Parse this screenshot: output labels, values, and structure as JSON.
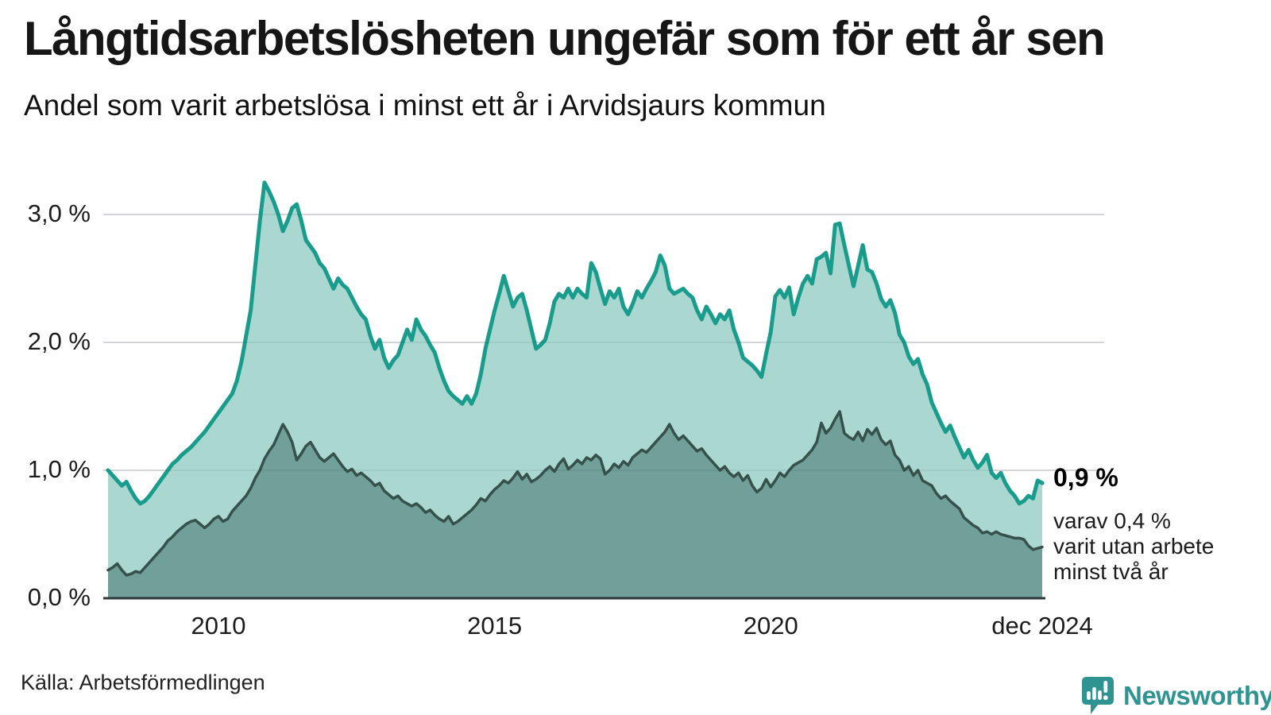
{
  "header": {
    "title": "Långtidsarbetslösheten ungefär som för ett år sen",
    "subtitle": "Andel som varit arbetslösa i minst ett år i Arvidsjaurs kommun"
  },
  "chart_data": {
    "type": "area",
    "unit": "%",
    "frequency": "monthly",
    "x_range": [
      "jan 2008",
      "dec 2024"
    ],
    "ylim": [
      0,
      3.45
    ],
    "grid": true,
    "legend": "none",
    "y_ticks": [
      {
        "value": 0,
        "label": "0,0 %"
      },
      {
        "value": 1,
        "label": "1,0 %"
      },
      {
        "value": 2,
        "label": "2,0 %"
      },
      {
        "value": 3,
        "label": "3,0 %"
      }
    ],
    "x_ticks": [
      {
        "label": "2010",
        "month_index": 24
      },
      {
        "label": "2015",
        "month_index": 84
      },
      {
        "label": "2020",
        "month_index": 144
      },
      {
        "label": "dec 2024",
        "month_index": 203
      }
    ],
    "series": [
      {
        "name": "arbetslösa minst ett år",
        "color": "#1a9c8d",
        "fill": "#aad8d0",
        "line_width": 5,
        "values": [
          1.0,
          0.96,
          0.92,
          0.88,
          0.91,
          0.84,
          0.78,
          0.74,
          0.76,
          0.8,
          0.85,
          0.9,
          0.95,
          1.0,
          1.05,
          1.08,
          1.12,
          1.15,
          1.18,
          1.22,
          1.26,
          1.3,
          1.35,
          1.4,
          1.45,
          1.5,
          1.55,
          1.6,
          1.7,
          1.85,
          2.05,
          2.25,
          2.6,
          2.95,
          3.25,
          3.18,
          3.1,
          3.0,
          2.87,
          2.95,
          3.05,
          3.08,
          2.95,
          2.8,
          2.75,
          2.7,
          2.62,
          2.58,
          2.5,
          2.42,
          2.5,
          2.45,
          2.42,
          2.35,
          2.28,
          2.22,
          2.18,
          2.05,
          1.95,
          2.02,
          1.88,
          1.8,
          1.86,
          1.9,
          2.0,
          2.1,
          2.02,
          2.18,
          2.1,
          2.05,
          1.98,
          1.92,
          1.8,
          1.7,
          1.62,
          1.58,
          1.55,
          1.52,
          1.58,
          1.52,
          1.6,
          1.75,
          1.95,
          2.1,
          2.25,
          2.38,
          2.52,
          2.4,
          2.28,
          2.35,
          2.38,
          2.25,
          2.1,
          1.95,
          1.98,
          2.02,
          2.15,
          2.32,
          2.38,
          2.35,
          2.42,
          2.35,
          2.42,
          2.38,
          2.35,
          2.62,
          2.55,
          2.42,
          2.3,
          2.4,
          2.35,
          2.42,
          2.28,
          2.22,
          2.3,
          2.4,
          2.35,
          2.42,
          2.48,
          2.55,
          2.68,
          2.6,
          2.42,
          2.38,
          2.4,
          2.42,
          2.38,
          2.35,
          2.25,
          2.18,
          2.28,
          2.22,
          2.15,
          2.22,
          2.18,
          2.25,
          2.1,
          2.0,
          1.88,
          1.85,
          1.82,
          1.78,
          1.73,
          1.91,
          2.08,
          2.36,
          2.41,
          2.35,
          2.43,
          2.22,
          2.35,
          2.46,
          2.52,
          2.46,
          2.65,
          2.67,
          2.7,
          2.54,
          2.92,
          2.93,
          2.76,
          2.6,
          2.44,
          2.6,
          2.76,
          2.57,
          2.55,
          2.46,
          2.34,
          2.28,
          2.33,
          2.23,
          2.06,
          2.0,
          1.89,
          1.83,
          1.87,
          1.75,
          1.67,
          1.53,
          1.45,
          1.37,
          1.3,
          1.35,
          1.26,
          1.18,
          1.1,
          1.16,
          1.08,
          1.02,
          1.06,
          1.12,
          0.98,
          0.94,
          0.98,
          0.9,
          0.84,
          0.8,
          0.74,
          0.76,
          0.8,
          0.78,
          0.92,
          0.9
        ]
      },
      {
        "name": "varit utan arbete minst två år",
        "color": "#36504b",
        "fill": "#70a099",
        "line_width": 3.5,
        "values": [
          0.22,
          0.24,
          0.27,
          0.22,
          0.18,
          0.19,
          0.21,
          0.2,
          0.24,
          0.28,
          0.32,
          0.36,
          0.4,
          0.45,
          0.48,
          0.52,
          0.55,
          0.58,
          0.6,
          0.61,
          0.58,
          0.55,
          0.58,
          0.62,
          0.64,
          0.6,
          0.62,
          0.68,
          0.72,
          0.76,
          0.8,
          0.86,
          0.94,
          1.0,
          1.09,
          1.15,
          1.2,
          1.28,
          1.36,
          1.3,
          1.22,
          1.08,
          1.13,
          1.19,
          1.22,
          1.16,
          1.1,
          1.07,
          1.1,
          1.13,
          1.08,
          1.03,
          0.99,
          1.01,
          0.96,
          0.98,
          0.95,
          0.92,
          0.88,
          0.9,
          0.84,
          0.81,
          0.78,
          0.8,
          0.76,
          0.74,
          0.72,
          0.74,
          0.71,
          0.67,
          0.69,
          0.65,
          0.62,
          0.6,
          0.64,
          0.58,
          0.6,
          0.63,
          0.66,
          0.69,
          0.73,
          0.78,
          0.76,
          0.81,
          0.85,
          0.88,
          0.92,
          0.9,
          0.94,
          0.99,
          0.93,
          0.97,
          0.91,
          0.93,
          0.96,
          1.0,
          1.03,
          0.99,
          1.05,
          1.09,
          1.01,
          1.04,
          1.08,
          1.05,
          1.1,
          1.08,
          1.12,
          1.09,
          0.97,
          1.0,
          1.05,
          1.02,
          1.07,
          1.04,
          1.1,
          1.13,
          1.16,
          1.14,
          1.18,
          1.22,
          1.26,
          1.3,
          1.36,
          1.29,
          1.24,
          1.27,
          1.23,
          1.19,
          1.15,
          1.17,
          1.12,
          1.08,
          1.04,
          1.0,
          1.03,
          0.98,
          0.95,
          0.98,
          0.92,
          0.96,
          0.88,
          0.83,
          0.86,
          0.93,
          0.87,
          0.92,
          0.98,
          0.95,
          1.0,
          1.04,
          1.06,
          1.08,
          1.12,
          1.16,
          1.22,
          1.37,
          1.29,
          1.33,
          1.4,
          1.46,
          1.29,
          1.26,
          1.24,
          1.3,
          1.23,
          1.32,
          1.28,
          1.33,
          1.24,
          1.2,
          1.23,
          1.12,
          1.08,
          1.0,
          1.03,
          0.96,
          1.0,
          0.92,
          0.9,
          0.88,
          0.82,
          0.78,
          0.8,
          0.76,
          0.73,
          0.7,
          0.63,
          0.6,
          0.57,
          0.55,
          0.51,
          0.52,
          0.5,
          0.52,
          0.5,
          0.49,
          0.48,
          0.47,
          0.47,
          0.46,
          0.41,
          0.38,
          0.39,
          0.4
        ]
      }
    ],
    "annotations": {
      "value_label": "0,9 %",
      "detail_lines": [
        "varav 0,4 %",
        "varit utan arbete",
        "minst två år"
      ]
    }
  },
  "footer": {
    "source": "Källa: Arbetsförmedlingen",
    "logo_text": "Newsworthy",
    "logo_color": "#2f9392"
  },
  "colors": {
    "gridline": "#e3e3e7",
    "baseline": "#2b3a37",
    "background": "#ffffff"
  }
}
